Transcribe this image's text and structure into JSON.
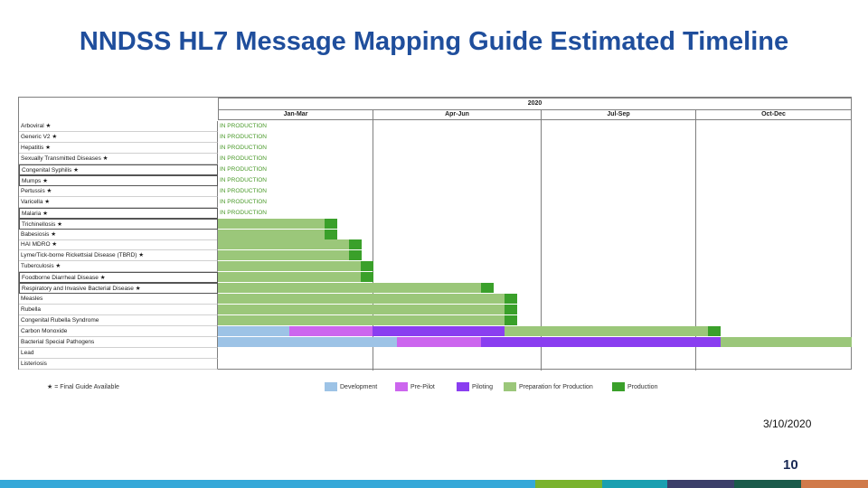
{
  "title": "NNDSS HL7 Message Mapping Guide Estimated Timeline",
  "year": "2020",
  "quarters": [
    "Jan-Mar",
    "Apr-Jun",
    "Jul-Sep",
    "Oct-Dec"
  ],
  "status_label": "IN PRODUCTION",
  "rows": [
    {
      "name": "Arboviral ★",
      "status": "IN PRODUCTION",
      "boxed": false
    },
    {
      "name": "Generic V2 ★",
      "status": "IN PRODUCTION",
      "boxed": false
    },
    {
      "name": "Hepatitis ★",
      "status": "IN PRODUCTION",
      "boxed": false
    },
    {
      "name": "Sexually Transmitted Diseases ★",
      "status": "IN PRODUCTION",
      "boxed": false
    },
    {
      "name": "Congenital Syphilis ★",
      "status": "IN PRODUCTION",
      "boxed": true
    },
    {
      "name": "Mumps ★",
      "status": "IN PRODUCTION",
      "boxed": true
    },
    {
      "name": "Pertussis ★",
      "status": "IN PRODUCTION",
      "boxed": false
    },
    {
      "name": "Varicella ★",
      "status": "IN PRODUCTION",
      "boxed": false
    },
    {
      "name": "Malaria ★",
      "status": "IN PRODUCTION",
      "boxed": true
    },
    {
      "name": "Trichinellosis ★",
      "status": "",
      "boxed": true
    },
    {
      "name": "Babesiosis ★",
      "status": "",
      "boxed": false
    },
    {
      "name": "HAI MDRO ★",
      "status": "",
      "boxed": false
    },
    {
      "name": "Lyme/Tick-borne Rickettsial Disease (TBRD) ★",
      "status": "",
      "boxed": false
    },
    {
      "name": "Tuberculosis ★",
      "status": "",
      "boxed": false
    },
    {
      "name": "Foodborne Diarrheal Disease ★",
      "status": "",
      "boxed": true
    },
    {
      "name": "Respiratory and Invasive Bacterial Disease ★",
      "status": "",
      "boxed": true
    },
    {
      "name": "Measles",
      "status": "",
      "boxed": false
    },
    {
      "name": "Rubella",
      "status": "",
      "boxed": false
    },
    {
      "name": "Congenital Rubella Syndrome",
      "status": "",
      "boxed": false
    },
    {
      "name": "Carbon Monoxide",
      "status": "",
      "boxed": false
    },
    {
      "name": "Bacterial Special Pathogens",
      "status": "",
      "boxed": false
    },
    {
      "name": "Lead",
      "status": "",
      "boxed": false
    },
    {
      "name": "Listeriosis",
      "status": "",
      "boxed": false
    }
  ],
  "legend": {
    "note": "★ = Final Guide Available",
    "items": [
      {
        "label": "Development",
        "color": "#9dc3e6"
      },
      {
        "label": "Pre-Pilot",
        "color": "#cc66ee"
      },
      {
        "label": "Piloting",
        "color": "#8a3ef0"
      },
      {
        "label": "Preparation for Production",
        "color": "#9bc77a"
      },
      {
        "label": "Production",
        "color": "#3aa02a"
      }
    ]
  },
  "date": "3/10/2020",
  "page_number": "10",
  "colors": {
    "title": "#1f4e9c",
    "development": "#9dc3e6",
    "pre_pilot": "#cc66ee",
    "piloting": "#8a3ef0",
    "preparation": "#9bc77a",
    "production": "#3aa02a",
    "status_text": "#4a9a2a"
  }
}
